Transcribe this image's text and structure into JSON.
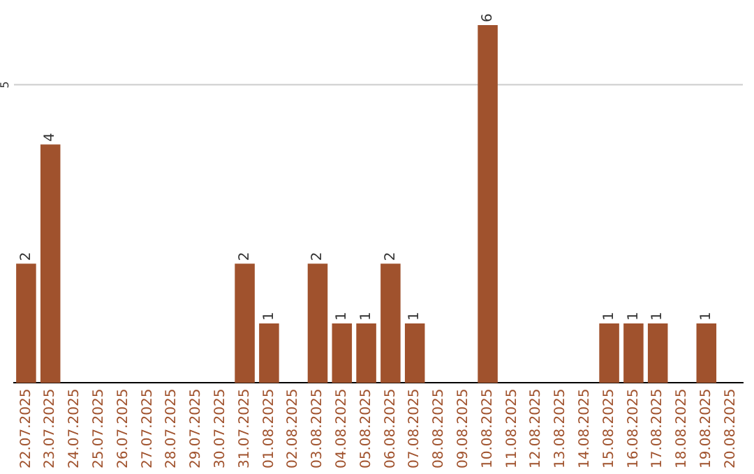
{
  "chart_data": {
    "type": "bar",
    "categories": [
      "22.07.2025",
      "23.07.2025",
      "24.07.2025",
      "25.07.2025",
      "26.07.2025",
      "27.07.2025",
      "28.07.2025",
      "29.07.2025",
      "30.07.2025",
      "31.07.2025",
      "01.08.2025",
      "02.08.2025",
      "03.08.2025",
      "04.08.2025",
      "05.08.2025",
      "06.08.2025",
      "07.08.2025",
      "08.08.2025",
      "09.08.2025",
      "10.08.2025",
      "11.08.2025",
      "12.08.2025",
      "13.08.2025",
      "14.08.2025",
      "15.08.2025",
      "16.08.2025",
      "17.08.2025",
      "18.08.2025",
      "19.08.2025",
      "20.08.2025"
    ],
    "values": [
      2,
      4,
      0,
      0,
      0,
      0,
      0,
      0,
      0,
      2,
      1,
      0,
      2,
      1,
      1,
      2,
      1,
      0,
      0,
      6,
      0,
      0,
      0,
      0,
      1,
      1,
      1,
      0,
      1,
      0
    ],
    "value_labels": [
      "2",
      "4",
      null,
      null,
      null,
      null,
      null,
      null,
      null,
      "2",
      "1",
      null,
      "2",
      "1",
      "1",
      "2",
      "1",
      null,
      null,
      "6",
      null,
      null,
      null,
      null,
      "1",
      "1",
      "1",
      null,
      "1",
      null
    ],
    "color": "#a0522d",
    "ref_lines": [
      {
        "axis": "y",
        "value": 5,
        "label": "5",
        "color": "#cccccc"
      }
    ]
  }
}
